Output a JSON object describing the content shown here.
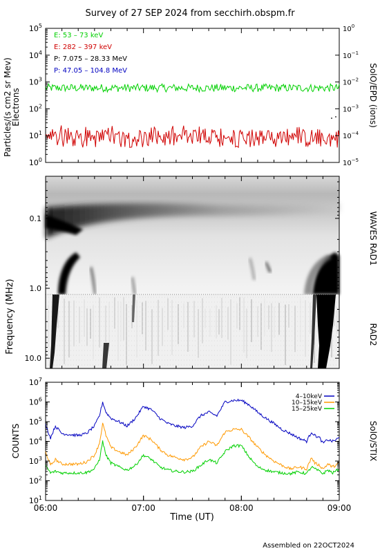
{
  "title": "Survey of 27 SEP 2024 from secchirh.obspm.fr",
  "footer": "Assembled on 22OCT2024",
  "chart_data": [
    {
      "type": "line",
      "panel": "epd",
      "ylabel_left_1": "Particles/(s cm2 sr Mev)",
      "ylabel_left_2": "Electrons",
      "ylabel_right": "SolO/EPD (ions)",
      "ylog": true,
      "ylim": [
        1,
        100000
      ],
      "yticks_left": [
        {
          "base": "10",
          "exp": "0",
          "v": 1
        },
        {
          "base": "10",
          "exp": "1",
          "v": 10
        },
        {
          "base": "10",
          "exp": "2",
          "v": 100
        },
        {
          "base": "10",
          "exp": "3",
          "v": 1000
        },
        {
          "base": "10",
          "exp": "4",
          "v": 10000
        },
        {
          "base": "10",
          "exp": "5",
          "v": 100000
        }
      ],
      "yticks_right": [
        {
          "base": "10",
          "exp": "−5"
        },
        {
          "base": "10",
          "exp": "−4"
        },
        {
          "base": "10",
          "exp": "−3"
        },
        {
          "base": "10",
          "exp": "−2"
        },
        {
          "base": "10",
          "exp": "−1"
        },
        {
          "base": "10",
          "exp": "0"
        }
      ],
      "xlim": [
        0,
        180
      ],
      "legend": [
        {
          "label": "E: 53 – 73 keV",
          "color": "#00d000"
        },
        {
          "label": "E: 282 – 397 keV",
          "color": "#d00000"
        },
        {
          "label": "P: 7.075 – 28.33 MeV",
          "color": "#000000"
        },
        {
          "label": "P: 47.05 – 104.8 MeV",
          "color": "#0000c0"
        }
      ],
      "series": [
        {
          "name": "E: 53 – 73 keV",
          "color": "#00d000",
          "level": 600,
          "jitter": 0.15
        },
        {
          "name": "E: 282 – 397 keV",
          "color": "#d00000",
          "level": 8,
          "jitter": 0.35
        }
      ]
    },
    {
      "type": "heatmap",
      "panel": "waves",
      "ylabel": "Frequency (MHz)",
      "label_right_top": "WAVES RAD1",
      "label_right_bottom": "RAD2",
      "yticks": [
        {
          "label": "0.1",
          "v": 0.1
        },
        {
          "label": "1.0",
          "v": 1.0
        },
        {
          "label": "10.0",
          "v": 10.0
        }
      ],
      "ylog": true,
      "ylim": [
        0.025,
        14
      ],
      "xlim": [
        0,
        180
      ]
    },
    {
      "type": "line",
      "panel": "stix",
      "ylabel": "COUNTS",
      "label_right": "SolO/STIX",
      "xlabel": "Time (UT)",
      "ylog": true,
      "ylim": [
        10,
        10000000
      ],
      "xlim": [
        0,
        180
      ],
      "xticks": [
        {
          "label": "06:00",
          "v": 0
        },
        {
          "label": "07:00",
          "v": 60
        },
        {
          "label": "08:00",
          "v": 120
        },
        {
          "label": "09:00",
          "v": 180
        }
      ],
      "yticks": [
        {
          "base": "10",
          "exp": "1",
          "v": 10
        },
        {
          "base": "10",
          "exp": "2",
          "v": 100
        },
        {
          "base": "10",
          "exp": "3",
          "v": 1000
        },
        {
          "base": "10",
          "exp": "4",
          "v": 10000
        },
        {
          "base": "10",
          "exp": "5",
          "v": 100000
        },
        {
          "base": "10",
          "exp": "6",
          "v": 1000000
        },
        {
          "base": "10",
          "exp": "7",
          "v": 10000000
        }
      ],
      "legend": [
        {
          "label": "4–10keV",
          "color": "#0000c0"
        },
        {
          "label": "10–15keV",
          "color": "#ff9900"
        },
        {
          "label": "15–25keV",
          "color": "#00d000"
        }
      ],
      "series": [
        {
          "name": "4–10keV",
          "color": "#0000c0",
          "x": [
            0,
            3,
            6,
            10,
            15,
            20,
            25,
            30,
            33,
            35,
            37,
            40,
            45,
            50,
            55,
            60,
            65,
            70,
            75,
            80,
            85,
            90,
            95,
            100,
            105,
            110,
            115,
            120,
            125,
            130,
            135,
            140,
            145,
            150,
            155,
            160,
            163,
            165,
            168,
            170,
            173,
            176,
            180
          ],
          "y": [
            70000,
            15000,
            60000,
            25000,
            22000,
            20000,
            25000,
            60000,
            200000,
            1000000,
            300000,
            150000,
            100000,
            60000,
            150000,
            600000,
            400000,
            150000,
            80000,
            60000,
            50000,
            60000,
            200000,
            300000,
            200000,
            1000000,
            1200000,
            1200000,
            700000,
            300000,
            150000,
            80000,
            40000,
            25000,
            15000,
            10000,
            30000,
            20000,
            15000,
            8000,
            12000,
            10000,
            15000
          ]
        },
        {
          "name": "10–15keV",
          "color": "#ff9900",
          "x": [
            0,
            3,
            6,
            10,
            15,
            20,
            25,
            30,
            33,
            35,
            37,
            40,
            45,
            50,
            55,
            60,
            65,
            70,
            75,
            80,
            85,
            90,
            95,
            100,
            105,
            110,
            115,
            120,
            125,
            130,
            135,
            140,
            145,
            150,
            155,
            160,
            163,
            165,
            168,
            170,
            173,
            176,
            180
          ],
          "y": [
            3000,
            600,
            1200,
            700,
            700,
            700,
            900,
            2000,
            8000,
            80000,
            20000,
            5000,
            3000,
            2000,
            5000,
            20000,
            12000,
            4000,
            2000,
            1500,
            1200,
            1500,
            5000,
            10000,
            6000,
            30000,
            40000,
            40000,
            15000,
            5000,
            2000,
            1000,
            600,
            400,
            500,
            400,
            1500,
            800,
            600,
            400,
            700,
            500,
            800
          ]
        },
        {
          "name": "15–25keV",
          "color": "#00d000",
          "x": [
            0,
            3,
            6,
            10,
            15,
            20,
            25,
            30,
            33,
            35,
            37,
            40,
            45,
            50,
            55,
            60,
            65,
            70,
            75,
            80,
            85,
            90,
            95,
            100,
            105,
            110,
            115,
            120,
            125,
            130,
            135,
            140,
            145,
            150,
            155,
            160,
            163,
            165,
            168,
            170,
            173,
            176,
            180
          ],
          "y": [
            600,
            250,
            300,
            250,
            250,
            250,
            260,
            400,
            1200,
            10000,
            2000,
            800,
            500,
            350,
            600,
            2000,
            1200,
            500,
            350,
            300,
            280,
            300,
            600,
            1200,
            800,
            3000,
            6000,
            6000,
            1500,
            500,
            350,
            280,
            250,
            230,
            280,
            230,
            500,
            400,
            300,
            230,
            350,
            250,
            400
          ]
        }
      ]
    }
  ]
}
